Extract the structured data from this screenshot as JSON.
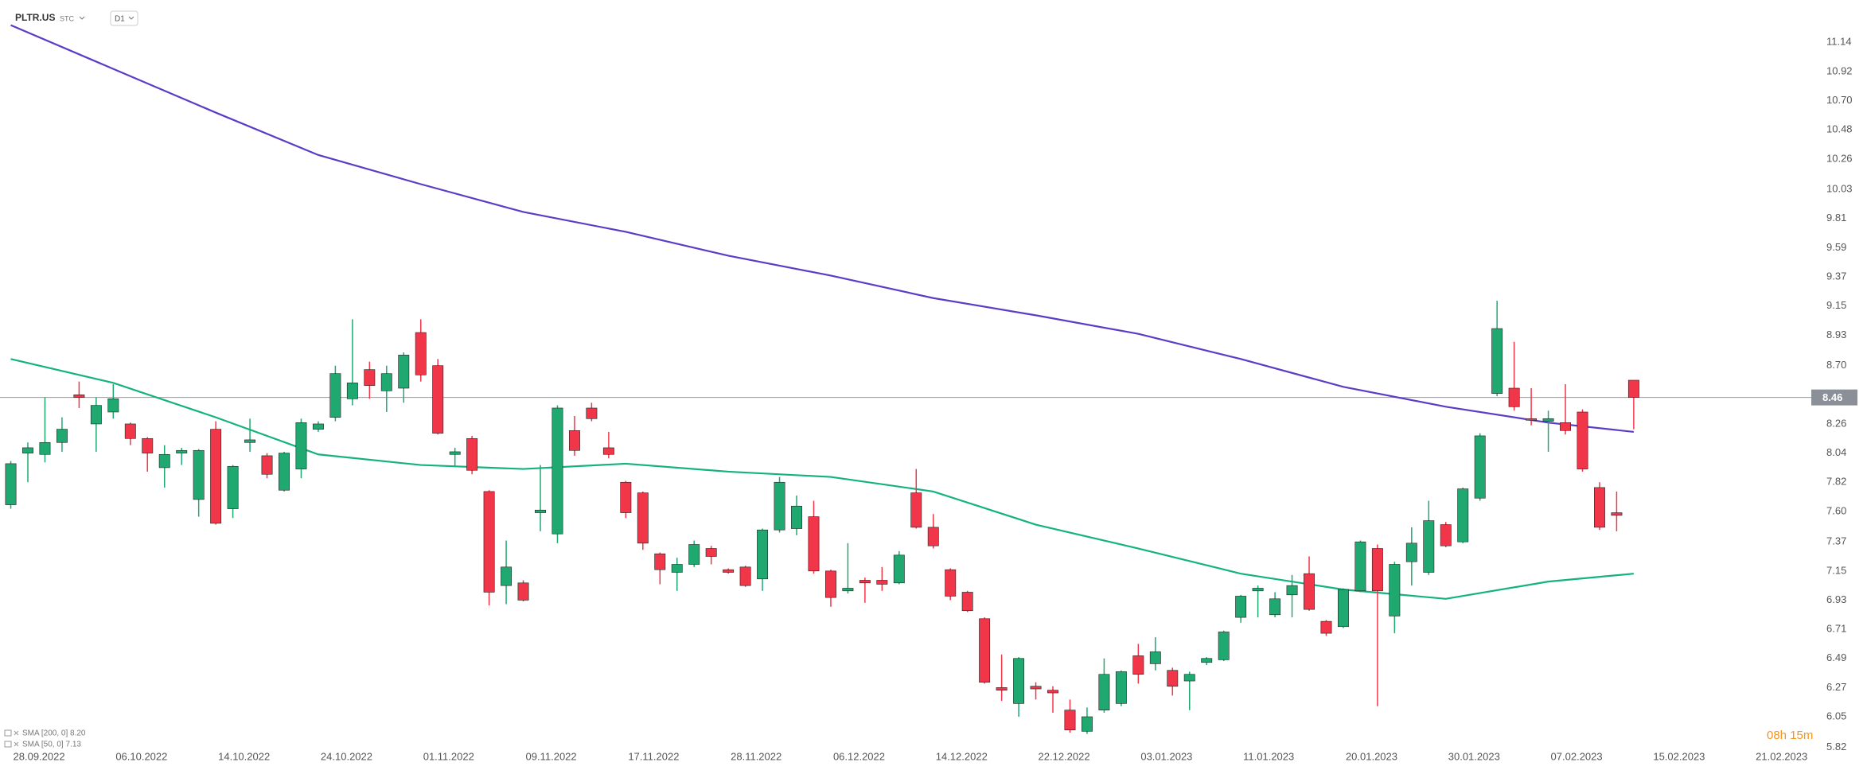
{
  "header": {
    "symbol": "PLTR.US",
    "market": "STC",
    "interval": "D1"
  },
  "chart_data": {
    "type": "candlestick",
    "up_color": "#1fa971",
    "down_color": "#f2364a",
    "open": [
      7.65,
      8.04,
      8.03,
      8.12,
      8.48,
      8.26,
      8.35,
      8.26,
      8.15,
      7.93,
      8.04,
      7.69,
      8.22,
      7.62,
      8.12,
      8.02,
      7.76,
      7.92,
      8.22,
      8.31,
      8.45,
      8.67,
      8.51,
      8.53,
      8.95,
      8.7,
      8.03,
      8.15,
      7.75,
      7.04,
      7.06,
      7.59,
      7.43,
      8.21,
      8.38,
      8.08,
      7.82,
      7.74,
      7.28,
      7.14,
      7.2,
      7.32,
      7.16,
      7.18,
      7.09,
      7.46,
      7.47,
      7.56,
      7.15,
      7.0,
      7.08,
      7.08,
      7.06,
      7.74,
      7.48,
      7.16,
      6.99,
      6.79,
      6.27,
      6.15,
      6.28,
      6.25,
      6.1,
      5.94,
      6.1,
      6.15,
      6.51,
      6.45,
      6.4,
      6.32,
      6.46,
      6.48,
      6.8,
      7.0,
      6.82,
      6.97,
      7.13,
      6.77,
      6.73,
      7.0,
      7.32,
      6.81,
      7.22,
      7.14,
      7.5,
      7.37,
      7.7,
      8.49,
      8.53,
      8.3,
      8.28,
      8.27,
      8.35,
      7.78,
      7.59,
      8.59
    ],
    "high": [
      7.98,
      8.12,
      8.46,
      8.31,
      8.58,
      8.46,
      8.56,
      8.27,
      8.16,
      8.1,
      8.08,
      8.07,
      8.28,
      7.95,
      8.3,
      8.04,
      8.05,
      8.3,
      8.28,
      8.7,
      9.05,
      8.73,
      8.7,
      8.8,
      9.05,
      8.75,
      8.08,
      8.17,
      7.76,
      7.38,
      7.08,
      7.95,
      8.4,
      8.32,
      8.42,
      8.2,
      7.83,
      7.75,
      7.29,
      7.25,
      7.38,
      7.34,
      7.17,
      7.19,
      7.47,
      7.86,
      7.72,
      7.68,
      7.16,
      7.36,
      7.1,
      7.18,
      7.3,
      7.92,
      7.58,
      7.17,
      7.0,
      6.8,
      6.52,
      6.5,
      6.31,
      6.28,
      6.18,
      6.12,
      6.49,
      6.4,
      6.6,
      6.65,
      6.42,
      6.39,
      6.5,
      6.7,
      6.97,
      7.04,
      6.99,
      7.12,
      7.26,
      6.78,
      7.02,
      7.38,
      7.35,
      7.22,
      7.48,
      7.68,
      7.52,
      7.78,
      8.19,
      9.19,
      8.88,
      8.53,
      8.36,
      8.56,
      8.37,
      7.82,
      7.75,
      8.59
    ],
    "low": [
      7.62,
      7.82,
      7.97,
      8.05,
      8.38,
      8.05,
      8.3,
      8.1,
      7.9,
      7.78,
      7.95,
      7.56,
      7.5,
      7.55,
      8.05,
      7.85,
      7.75,
      7.85,
      8.2,
      8.28,
      8.4,
      8.45,
      8.35,
      8.42,
      8.58,
      8.18,
      7.94,
      7.88,
      6.89,
      6.9,
      6.92,
      7.45,
      7.36,
      8.02,
      8.28,
      8.0,
      7.55,
      7.31,
      7.05,
      7.0,
      7.18,
      7.2,
      7.13,
      7.03,
      7.0,
      7.44,
      7.42,
      7.13,
      6.88,
      6.98,
      6.91,
      7.0,
      7.05,
      7.47,
      7.32,
      6.93,
      6.84,
      6.3,
      6.17,
      6.05,
      6.18,
      6.08,
      5.93,
      5.92,
      6.08,
      6.13,
      6.3,
      6.4,
      6.21,
      6.1,
      6.44,
      6.47,
      6.76,
      6.8,
      6.8,
      6.8,
      6.85,
      6.66,
      6.72,
      6.99,
      6.13,
      6.68,
      7.04,
      7.12,
      7.33,
      7.36,
      7.68,
      8.47,
      8.36,
      8.25,
      8.05,
      8.18,
      7.9,
      7.46,
      7.45,
      8.22
    ],
    "close": [
      7.96,
      8.08,
      8.12,
      8.22,
      8.46,
      8.4,
      8.45,
      8.15,
      8.04,
      8.03,
      8.06,
      8.06,
      7.51,
      7.94,
      8.14,
      7.88,
      8.04,
      8.27,
      8.26,
      8.64,
      8.57,
      8.55,
      8.64,
      8.78,
      8.63,
      8.19,
      8.05,
      7.91,
      6.99,
      7.18,
      6.93,
      7.61,
      8.38,
      8.06,
      8.3,
      8.03,
      7.59,
      7.36,
      7.16,
      7.2,
      7.35,
      7.26,
      7.14,
      7.04,
      7.46,
      7.82,
      7.64,
      7.15,
      6.95,
      7.02,
      7.06,
      7.05,
      7.27,
      7.48,
      7.34,
      6.96,
      6.85,
      6.31,
      6.25,
      6.49,
      6.26,
      6.23,
      5.95,
      6.05,
      6.37,
      6.39,
      6.37,
      6.54,
      6.28,
      6.37,
      6.49,
      6.69,
      6.96,
      7.02,
      6.94,
      7.04,
      6.86,
      6.68,
      7.01,
      7.37,
      7.0,
      7.2,
      7.36,
      7.53,
      7.34,
      7.77,
      8.17,
      8.98,
      8.39,
      8.29,
      8.3,
      8.21,
      7.92,
      7.48,
      7.57,
      8.46
    ],
    "series": [
      {
        "name": "SMA [200, 0] 8.20",
        "color": "#5b3cc4",
        "x": [
          0,
          6,
          12,
          18,
          24,
          30,
          36,
          42,
          48,
          54,
          60,
          66,
          72,
          78,
          84,
          90,
          95
        ],
        "values": [
          11.27,
          10.94,
          10.61,
          10.29,
          10.07,
          9.86,
          9.71,
          9.53,
          9.38,
          9.21,
          9.08,
          8.94,
          8.75,
          8.54,
          8.39,
          8.27,
          8.2
        ]
      },
      {
        "name": "SMA [50, 0] 7.13",
        "color": "#14b37d",
        "x": [
          0,
          6,
          12,
          18,
          24,
          30,
          36,
          42,
          48,
          54,
          60,
          66,
          72,
          78,
          84,
          90,
          95
        ],
        "values": [
          8.75,
          8.57,
          8.31,
          8.03,
          7.95,
          7.92,
          7.96,
          7.9,
          7.86,
          7.75,
          7.5,
          7.32,
          7.13,
          7.01,
          6.94,
          7.07,
          7.13
        ]
      }
    ],
    "legend": "bottom-left",
    "last_price": 8.46,
    "countdown": "08h 15m",
    "xlim": [
      -0.63,
      105.3
    ],
    "xticks": [
      {
        "value": 0,
        "label": "28.09.2022"
      },
      {
        "value": 6,
        "label": "06.10.2022"
      },
      {
        "value": 12,
        "label": "14.10.2022"
      },
      {
        "value": 18,
        "label": "24.10.2022"
      },
      {
        "value": 24,
        "label": "01.11.2022"
      },
      {
        "value": 30,
        "label": "09.11.2022"
      },
      {
        "value": 36,
        "label": "17.11.2022"
      },
      {
        "value": 42,
        "label": "28.11.2022"
      },
      {
        "value": 48,
        "label": "06.12.2022"
      },
      {
        "value": 54,
        "label": "14.12.2022"
      },
      {
        "value": 60,
        "label": "22.12.2022"
      },
      {
        "value": 66,
        "label": "03.01.2023"
      },
      {
        "value": 72,
        "label": "11.01.2023"
      },
      {
        "value": 78,
        "label": "20.01.2023"
      },
      {
        "value": 84,
        "label": "30.01.2023"
      },
      {
        "value": 90,
        "label": "07.02.2023"
      },
      {
        "value": 96,
        "label": "15.02.2023"
      },
      {
        "value": 102,
        "label": "21.02.2023"
      }
    ],
    "ylim": [
      5.78,
      11.46
    ],
    "yticks": [
      11.14,
      10.92,
      {
        "value": 10.7,
        "label": "10.70"
      },
      10.48,
      10.26,
      10.03,
      9.81,
      9.59,
      9.37,
      9.15,
      8.93,
      {
        "value": 8.7,
        "label": "8.70"
      },
      8.26,
      8.04,
      7.82,
      {
        "value": 7.6,
        "label": "7.60"
      },
      7.37,
      7.15,
      6.93,
      6.71,
      6.49,
      6.27,
      6.05,
      5.82
    ]
  }
}
